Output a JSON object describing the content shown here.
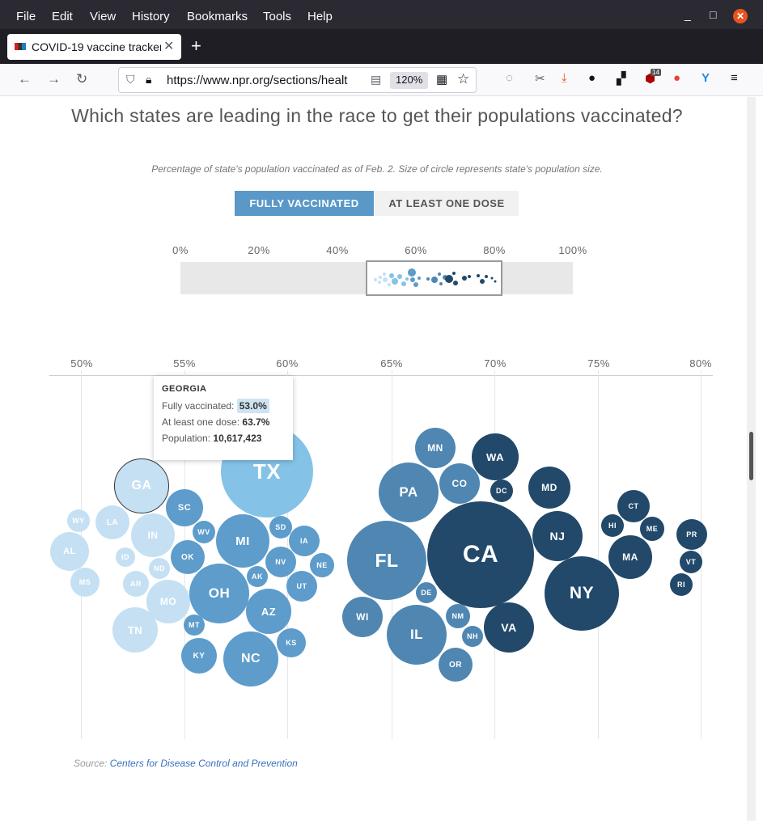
{
  "browser": {
    "menu": [
      "File",
      "Edit",
      "View",
      "History",
      "Bookmarks",
      "Tools",
      "Help"
    ],
    "tab_title": "COVID-19 vaccine tracker",
    "url": "https://www.npr.org/sections/healt",
    "zoom": "120%",
    "ext_badge": "14"
  },
  "chart": {
    "title": "Which states are leading in the race to get their populations vaccinated?",
    "subtitle": "Percentage of state's population vaccinated as of Feb. 2. Size of circle represents state's population size.",
    "toggle_active": "FULLY VACCINATED",
    "toggle_inactive": "AT LEAST ONE DOSE",
    "mini_ticks": [
      "0%",
      "20%",
      "40%",
      "60%",
      "80%",
      "100%"
    ],
    "axis_ticks": [
      "50%",
      "55%",
      "60%",
      "65%",
      "70%",
      "75%",
      "80%"
    ],
    "source_label": "Source:",
    "source_link": "Centers for Disease Control and Prevention",
    "tooltip": {
      "state": "GEORGIA",
      "fully_label": "Fully vaccinated:",
      "fully_value": "53.0%",
      "dose_label": "At least one dose:",
      "dose_value": "63.7%",
      "pop_label": "Population:",
      "pop_value": "10,617,423"
    }
  },
  "chart_data": {
    "type": "scatter",
    "title": "Which states are leading in the race to get their populations vaccinated?",
    "xlabel": "",
    "ylabel": "",
    "xlim": [
      50,
      80
    ],
    "x_unit": "percent fully vaccinated",
    "states": [
      {
        "abbr": "WY"
      },
      {
        "abbr": "LA"
      },
      {
        "abbr": "AL"
      },
      {
        "abbr": "MS"
      },
      {
        "abbr": "ID"
      },
      {
        "abbr": "AR"
      },
      {
        "abbr": "IN"
      },
      {
        "abbr": "ND"
      },
      {
        "abbr": "GA",
        "fully": 53.0,
        "one_dose": 63.7,
        "population": 10617423
      },
      {
        "abbr": "TN"
      },
      {
        "abbr": "MO"
      },
      {
        "abbr": "SC"
      },
      {
        "abbr": "WV"
      },
      {
        "abbr": "OK"
      },
      {
        "abbr": "MT"
      },
      {
        "abbr": "KY"
      },
      {
        "abbr": "OH"
      },
      {
        "abbr": "TX"
      },
      {
        "abbr": "MI"
      },
      {
        "abbr": "SD"
      },
      {
        "abbr": "IA"
      },
      {
        "abbr": "NV"
      },
      {
        "abbr": "NE"
      },
      {
        "abbr": "AK"
      },
      {
        "abbr": "UT"
      },
      {
        "abbr": "AZ"
      },
      {
        "abbr": "KS"
      },
      {
        "abbr": "NC"
      },
      {
        "abbr": "MN"
      },
      {
        "abbr": "PA"
      },
      {
        "abbr": "CO"
      },
      {
        "abbr": "FL"
      },
      {
        "abbr": "WI"
      },
      {
        "abbr": "DE"
      },
      {
        "abbr": "IL"
      },
      {
        "abbr": "NM"
      },
      {
        "abbr": "NH"
      },
      {
        "abbr": "OR"
      },
      {
        "abbr": "CA"
      },
      {
        "abbr": "WA"
      },
      {
        "abbr": "DC"
      },
      {
        "abbr": "VA"
      },
      {
        "abbr": "MD"
      },
      {
        "abbr": "NJ"
      },
      {
        "abbr": "NY"
      },
      {
        "abbr": "CT"
      },
      {
        "abbr": "HI"
      },
      {
        "abbr": "ME"
      },
      {
        "abbr": "MA"
      },
      {
        "abbr": "PR"
      },
      {
        "abbr": "VT"
      },
      {
        "abbr": "RI"
      }
    ]
  },
  "colors": {
    "lightest": "#c5e0f3",
    "sky": "#85c2e7",
    "mid": "#5d9ccb",
    "medium": "#4f87b2",
    "dark": "#22496a",
    "toggle_active": "#5a98c8"
  }
}
